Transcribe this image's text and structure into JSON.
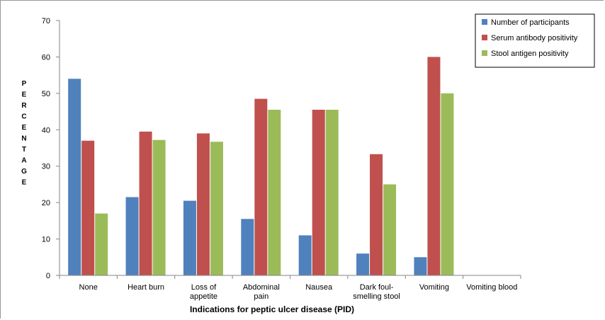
{
  "chart_data": {
    "type": "bar",
    "title": "",
    "xlabel": "Indications for peptic ulcer disease (PID)",
    "ylabel": "PERCENTAGE",
    "ylim": [
      0,
      70
    ],
    "yticks": [
      0,
      10,
      20,
      30,
      40,
      50,
      60,
      70
    ],
    "grid": false,
    "legend_position": "top-right",
    "categories": [
      [
        "None"
      ],
      [
        "Heart burn"
      ],
      [
        "Loss of",
        "appetite"
      ],
      [
        "Abdominal",
        "pain"
      ],
      [
        "Nausea"
      ],
      [
        "Dark foul-",
        "smelling stool"
      ],
      [
        "Vomiting"
      ],
      [
        "Vomiting blood"
      ]
    ],
    "series": [
      {
        "name": "Number of participants",
        "color": "#4F81BD",
        "values": [
          54,
          21.5,
          20.5,
          15.5,
          11,
          6,
          5,
          0
        ]
      },
      {
        "name": "Serum antibody positivity",
        "color": "#C0504D",
        "values": [
          37,
          39.5,
          39,
          48.5,
          45.5,
          33.3,
          60,
          0
        ]
      },
      {
        "name": "Stool antigen positivity",
        "color": "#9BBB59",
        "values": [
          17,
          37.2,
          36.7,
          45.5,
          45.5,
          25,
          50,
          0
        ]
      }
    ]
  }
}
